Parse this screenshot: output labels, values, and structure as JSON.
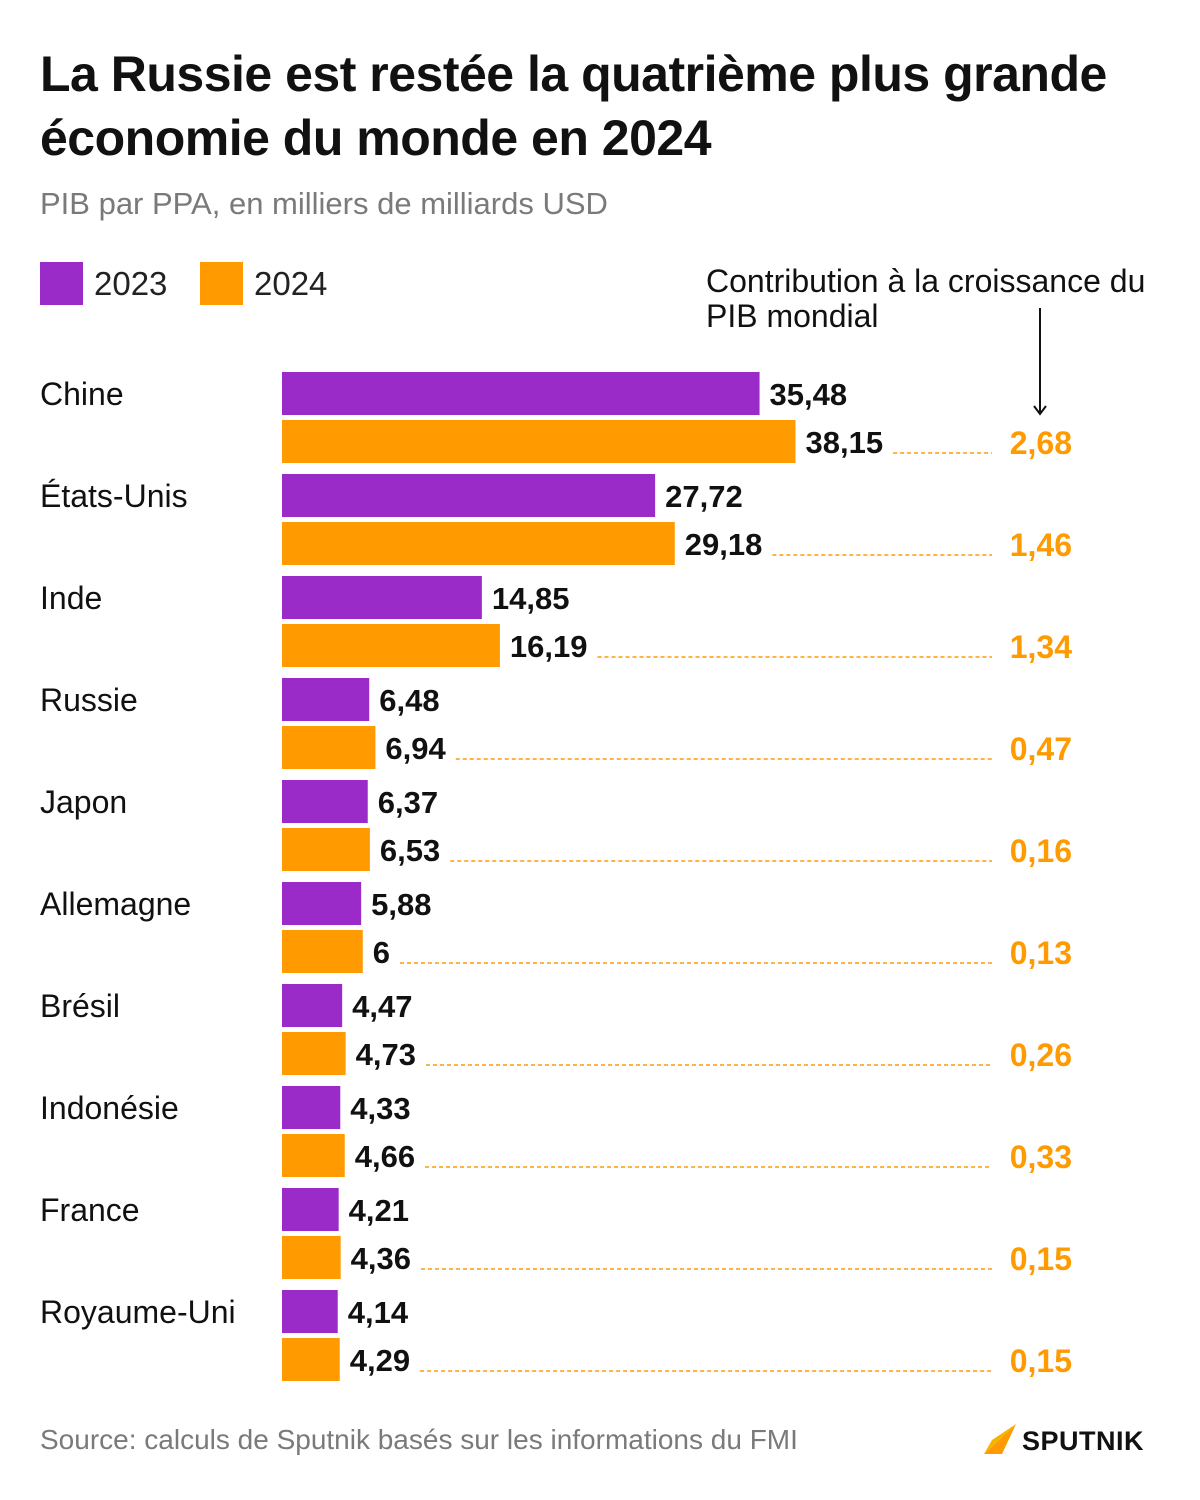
{
  "header": {
    "title": "La Russie est restée la quatrième plus grande économie du monde en 2024",
    "subtitle": "PIB par PPA, en milliers de milliards USD"
  },
  "legend": {
    "items": [
      {
        "label": "2023",
        "color": "#9a2bc9"
      },
      {
        "label": "2024",
        "color": "#ff9a00"
      }
    ],
    "contribution_note": "Contribution à la croissance du PIB mondial"
  },
  "chart_data": {
    "type": "bar",
    "orientation": "horizontal",
    "title": "La Russie est restée la quatrième plus grande économie du monde en 2024",
    "subtitle": "PIB par PPA, en milliers de milliards USD",
    "categories": [
      "Chine",
      "États-Unis",
      "Inde",
      "Russie",
      "Japon",
      "Allemagne",
      "Brésil",
      "Indonésie",
      "France",
      "Royaume-Uni"
    ],
    "series": [
      {
        "name": "2023",
        "color": "#9a2bc9",
        "values": [
          35.48,
          27.72,
          14.85,
          6.48,
          6.37,
          5.88,
          4.47,
          4.33,
          4.21,
          4.14
        ],
        "labels": [
          "35,48",
          "27,72",
          "14,85",
          "6,48",
          "6,37",
          "5,88",
          "4,47",
          "4,33",
          "4,21",
          "4,14"
        ]
      },
      {
        "name": "2024",
        "color": "#ff9a00",
        "values": [
          38.15,
          29.18,
          16.19,
          6.94,
          6.53,
          6,
          4.73,
          4.66,
          4.36,
          4.29
        ],
        "labels": [
          "38,15",
          "29,18",
          "16,19",
          "6,94",
          "6,53",
          "6",
          "4,73",
          "4,66",
          "4,36",
          "4,29"
        ]
      }
    ],
    "contribution": {
      "name": "Contribution à la croissance du PIB mondial",
      "color": "#ff9a00",
      "values": [
        2.68,
        1.46,
        1.34,
        0.47,
        0.16,
        0.13,
        0.26,
        0.33,
        0.15,
        0.15
      ],
      "labels": [
        "2,68",
        "1,46",
        "1,34",
        "0,47",
        "0,16",
        "0,13",
        "0,26",
        "0,33",
        "0,15",
        "0,15"
      ]
    },
    "xlim": [
      0,
      40
    ],
    "grid": false,
    "legend": "top-left"
  },
  "footer": {
    "source": "Source: calculs de Sputnik basés sur les informations du FMI",
    "brand": "SPUTNIK"
  }
}
